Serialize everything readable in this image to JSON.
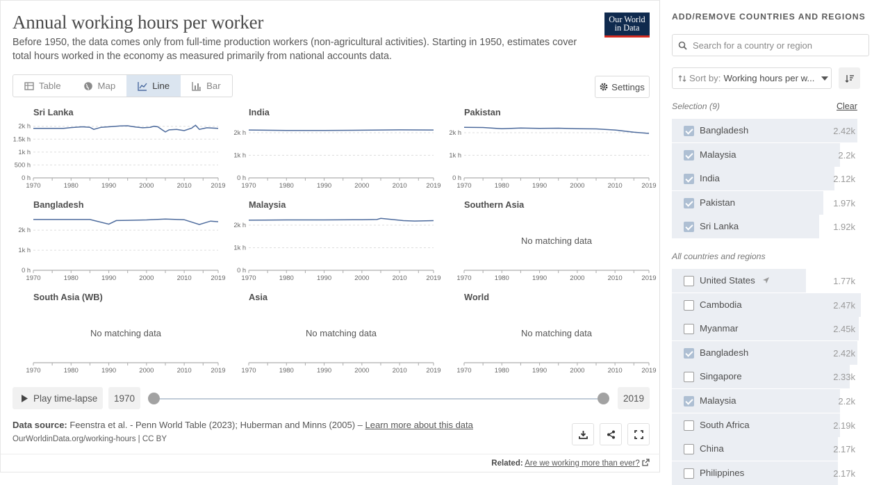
{
  "header": {
    "title": "Annual working hours per worker",
    "subtitle": "Before 1950, the data comes only from full-time production workers (non-agricultural activities). Starting in 1950, estimates cover total hours worked in the economy as measured primarily from national accounts data.",
    "logo_line1": "Our World",
    "logo_line2": "in Data"
  },
  "tabs": [
    {
      "label": "Table",
      "icon": "table-icon"
    },
    {
      "label": "Map",
      "icon": "globe-icon"
    },
    {
      "label": "Line",
      "icon": "line-chart-icon",
      "active": true
    },
    {
      "label": "Bar",
      "icon": "bar-chart-icon"
    }
  ],
  "settings_label": "Settings",
  "chart_data": [
    {
      "type": "line",
      "title": "Sri Lanka",
      "ylim": [
        0,
        2100
      ],
      "y_ticks": [
        "0 h",
        "500 h",
        "1k h",
        "1.5k h",
        "2k h"
      ],
      "y_tick_values": [
        0,
        500,
        1000,
        1500,
        2000
      ],
      "x_ticks": [
        "1970",
        "1980",
        "1990",
        "2000",
        "2010",
        "2019"
      ],
      "series": [
        {
          "x": [
            1970,
            1975,
            1978,
            1980,
            1983,
            1985,
            1986,
            1988,
            1990,
            1993,
            1995,
            1997,
            1999,
            2001,
            2002,
            2003,
            2004,
            2005,
            2006,
            2008,
            2010,
            2012,
            2013,
            2014,
            2016,
            2019
          ],
          "y": [
            1920,
            1920,
            1920,
            1950,
            1980,
            1960,
            1880,
            1960,
            1980,
            2010,
            2020,
            1970,
            1940,
            1960,
            2000,
            1980,
            1880,
            1780,
            1860,
            1880,
            1830,
            1930,
            2040,
            1880,
            1940,
            1920
          ]
        }
      ],
      "color": "#4c6a9c"
    },
    {
      "type": "line",
      "title": "India",
      "ylim": [
        0,
        2400
      ],
      "y_ticks": [
        "0 h",
        "1k h",
        "2k h"
      ],
      "y_tick_values": [
        0,
        1000,
        2000
      ],
      "x_ticks": [
        "1970",
        "1980",
        "1990",
        "2000",
        "2010",
        "2019"
      ],
      "series": [
        {
          "x": [
            1970,
            1980,
            1990,
            2000,
            2010,
            2019
          ],
          "y": [
            2120,
            2100,
            2100,
            2110,
            2125,
            2120
          ]
        }
      ],
      "color": "#4c6a9c"
    },
    {
      "type": "line",
      "title": "Pakistan",
      "ylim": [
        0,
        2400
      ],
      "y_ticks": [
        "0 h",
        "1k h",
        "2k h"
      ],
      "y_tick_values": [
        0,
        1000,
        2000
      ],
      "x_ticks": [
        "1970",
        "1980",
        "1990",
        "2000",
        "2010",
        "2019"
      ],
      "series": [
        {
          "x": [
            1970,
            1975,
            1980,
            1985,
            1990,
            1995,
            2000,
            2005,
            2010,
            2015,
            2019
          ],
          "y": [
            2240,
            2230,
            2180,
            2210,
            2190,
            2200,
            2180,
            2170,
            2120,
            2020,
            1970
          ]
        }
      ],
      "color": "#4c6a9c"
    },
    {
      "type": "line",
      "title": "Bangladesh",
      "ylim": [
        0,
        2700
      ],
      "y_ticks": [
        "0 h",
        "1k h",
        "2k h"
      ],
      "y_tick_values": [
        0,
        1000,
        2000
      ],
      "x_ticks": [
        "1970",
        "1980",
        "1990",
        "2000",
        "2010",
        "2019"
      ],
      "series": [
        {
          "x": [
            1970,
            1985,
            1990,
            1992,
            1995,
            2000,
            2005,
            2010,
            2014,
            2017,
            2019
          ],
          "y": [
            2530,
            2530,
            2300,
            2480,
            2490,
            2510,
            2550,
            2520,
            2280,
            2450,
            2420
          ]
        }
      ],
      "color": "#4c6a9c"
    },
    {
      "type": "line",
      "title": "Malaysia",
      "ylim": [
        0,
        2400
      ],
      "y_ticks": [
        "0 h",
        "1k h",
        "2k h"
      ],
      "y_tick_values": [
        0,
        1000,
        2000
      ],
      "x_ticks": [
        "1970",
        "1980",
        "1990",
        "2000",
        "2010",
        "2019"
      ],
      "series": [
        {
          "x": [
            1970,
            1980,
            1990,
            2000,
            2004,
            2005,
            2008,
            2011,
            2014,
            2019
          ],
          "y": [
            2220,
            2230,
            2230,
            2240,
            2250,
            2300,
            2250,
            2200,
            2180,
            2200
          ]
        }
      ],
      "color": "#4c6a9c"
    },
    {
      "type": "line",
      "title": "Southern Asia",
      "no_data": "No matching data",
      "x_ticks": [
        "1970",
        "1980",
        "1990",
        "2000",
        "2010",
        "2019"
      ]
    },
    {
      "type": "line",
      "title": "South Asia (WB)",
      "no_data": "No matching data",
      "x_ticks": [
        "1970",
        "1980",
        "1990",
        "2000",
        "2010",
        "2019"
      ]
    },
    {
      "type": "line",
      "title": "Asia",
      "no_data": "No matching data",
      "x_ticks": [
        "1970",
        "1980",
        "1990",
        "2000",
        "2010",
        "2019"
      ]
    },
    {
      "type": "line",
      "title": "World",
      "no_data": "No matching data",
      "x_ticks": [
        "1970",
        "1980",
        "1990",
        "2000",
        "2010",
        "2019"
      ]
    }
  ],
  "timeline": {
    "play_label": "Play time-lapse",
    "start_year": "1970",
    "end_year": "2019"
  },
  "footer": {
    "source_label": "Data source:",
    "source_text": " Feenstra et al. - Penn World Table (2023); Huberman and Minns (2005) – ",
    "learn_more": "Learn more about this data",
    "url": "OurWorldinData.org/working-hours | CC BY",
    "related_label": "Related:",
    "related_link": "Are we working more than ever?"
  },
  "sidebar": {
    "heading": "ADD/REMOVE COUNTRIES AND REGIONS",
    "search_placeholder": "Search for a country or region",
    "sort_label": "Sort by:",
    "sort_value": "Working hours per w...",
    "selection_label": "Selection (9)",
    "clear_label": "Clear",
    "all_label": "All countries and regions",
    "selection": [
      {
        "name": "Bangladesh",
        "value": "2.42k",
        "fraction": 0.98,
        "checked": true
      },
      {
        "name": "Malaysia",
        "value": "2.2k",
        "fraction": 0.89,
        "checked": true
      },
      {
        "name": "India",
        "value": "2.12k",
        "fraction": 0.86,
        "checked": true
      },
      {
        "name": "Pakistan",
        "value": "1.97k",
        "fraction": 0.8,
        "checked": true
      },
      {
        "name": "Sri Lanka",
        "value": "1.92k",
        "fraction": 0.78,
        "checked": true
      }
    ],
    "all": [
      {
        "name": "United States",
        "value": "1.77k",
        "fraction": 0.71,
        "checked": false,
        "flag": true
      },
      {
        "name": "Cambodia",
        "value": "2.47k",
        "fraction": 1.0,
        "checked": false
      },
      {
        "name": "Myanmar",
        "value": "2.45k",
        "fraction": 0.99,
        "checked": false
      },
      {
        "name": "Bangladesh",
        "value": "2.42k",
        "fraction": 0.98,
        "checked": true
      },
      {
        "name": "Singapore",
        "value": "2.33k",
        "fraction": 0.94,
        "checked": false
      },
      {
        "name": "Malaysia",
        "value": "2.2k",
        "fraction": 0.89,
        "checked": true
      },
      {
        "name": "South Africa",
        "value": "2.19k",
        "fraction": 0.89,
        "checked": false
      },
      {
        "name": "China",
        "value": "2.17k",
        "fraction": 0.88,
        "checked": false
      },
      {
        "name": "Philippines",
        "value": "2.17k",
        "fraction": 0.88,
        "checked": false
      }
    ]
  }
}
